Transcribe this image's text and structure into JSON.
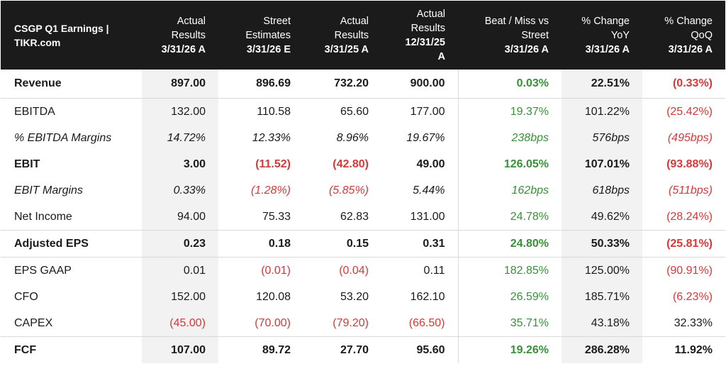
{
  "header": {
    "title_line1": "CSGP Q1 Earnings |",
    "title_line2": "TIKR.com",
    "columns": [
      {
        "line1": "Actual",
        "line2": "Results",
        "date": "3/31/26 A"
      },
      {
        "line1": "Street",
        "line2": "Estimates",
        "date": "3/31/26 E"
      },
      {
        "line1": "Actual",
        "line2": "Results",
        "date": "3/31/25 A"
      },
      {
        "line1": "Actual",
        "line2": "Results",
        "date": "12/31/25",
        "date2": "A"
      },
      {
        "line1": "Beat / Miss vs",
        "line2": "Street",
        "date": "3/31/26 A"
      },
      {
        "line1": "% Change",
        "line2": "YoY",
        "date": "3/31/26 A"
      },
      {
        "line1": "% Change",
        "line2": "QoQ",
        "date": "3/31/26 A"
      }
    ]
  },
  "rows": [
    {
      "label": "Revenue",
      "values": [
        "897.00",
        "896.69",
        "732.20",
        "900.00",
        "0.03%",
        "22.51%",
        "(0.33%)"
      ]
    },
    {
      "label": "EBITDA",
      "values": [
        "132.00",
        "110.58",
        "65.60",
        "177.00",
        "19.37%",
        "101.22%",
        "(25.42%)"
      ]
    },
    {
      "label": "% EBITDA Margins",
      "values": [
        "14.72%",
        "12.33%",
        "8.96%",
        "19.67%",
        "238bps",
        "576bps",
        "(495bps)"
      ]
    },
    {
      "label": "EBIT",
      "values": [
        "3.00",
        "(11.52)",
        "(42.80)",
        "49.00",
        "126.05%",
        "107.01%",
        "(93.88%)"
      ]
    },
    {
      "label": "EBIT Margins",
      "values": [
        "0.33%",
        "(1.28%)",
        "(5.85%)",
        "5.44%",
        "162bps",
        "618bps",
        "(511bps)"
      ]
    },
    {
      "label": "Net Income",
      "values": [
        "94.00",
        "75.33",
        "62.83",
        "131.00",
        "24.78%",
        "49.62%",
        "(28.24%)"
      ]
    },
    {
      "label": "Adjusted EPS",
      "values": [
        "0.23",
        "0.18",
        "0.15",
        "0.31",
        "24.80%",
        "50.33%",
        "(25.81%)"
      ]
    },
    {
      "label": "EPS GAAP",
      "values": [
        "0.01",
        "(0.01)",
        "(0.04)",
        "0.11",
        "182.85%",
        "125.00%",
        "(90.91%)"
      ]
    },
    {
      "label": "CFO",
      "values": [
        "152.00",
        "120.08",
        "53.20",
        "162.10",
        "26.59%",
        "185.71%",
        "(6.23%)"
      ]
    },
    {
      "label": "CAPEX",
      "values": [
        "(45.00)",
        "(70.00)",
        "(79.20)",
        "(66.50)",
        "35.71%",
        "43.18%",
        "32.33%"
      ]
    },
    {
      "label": "FCF",
      "values": [
        "107.00",
        "89.72",
        "27.70",
        "95.60",
        "19.26%",
        "286.28%",
        "11.92%"
      ]
    }
  ],
  "colors": {
    "header_bg": "#1b1b1b",
    "negative": "#d33a3a",
    "positive": "#3a8f3a",
    "shade": "#f2f2f2"
  }
}
